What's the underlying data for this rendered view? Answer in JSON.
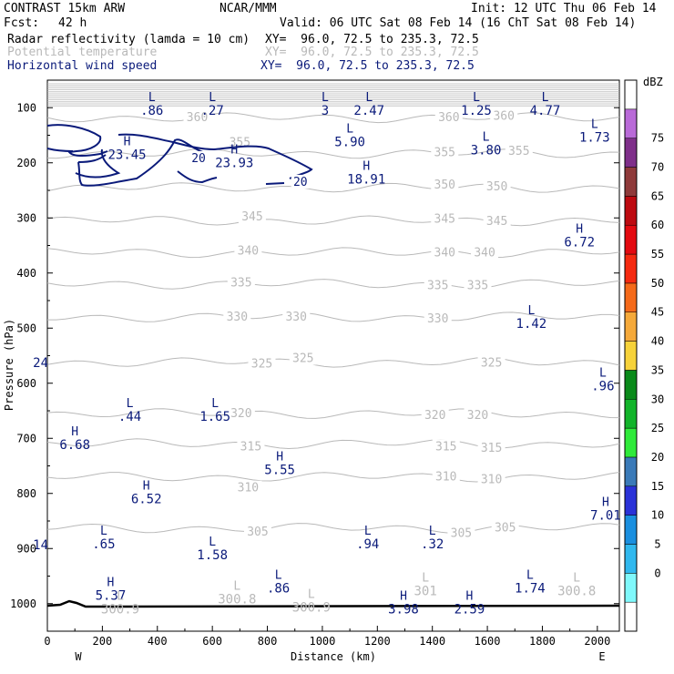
{
  "header": {
    "model_title": "CONTRAST 15km ARW",
    "center": "NCAR/MMM",
    "init": "Init: 12 UTC Thu 06 Feb 14",
    "fcst_label": "Fcst:",
    "fcst_value": "42 h",
    "valid": "Valid: 06 UTC Sat 08 Feb 14 (16 ChT Sat 08 Feb 14)",
    "fields": [
      {
        "name": "Radar reflectivity (lamda = 10 cm)",
        "xy": "XY=  96.0, 72.5 to 235.3, 72.5",
        "color": "#000000"
      },
      {
        "name": "Potential temperature",
        "xy": "XY=  96.0, 72.5 to 235.3, 72.5",
        "color": "#b9b9b9"
      },
      {
        "name": "Horizontal wind speed",
        "xy": "XY=  96.0, 72.5 to 235.3, 72.5",
        "color": "#0a1a7a"
      }
    ]
  },
  "chart_data": {
    "type": "contour-cross-section",
    "ylabel": "Pressure (hPa)",
    "xlabel": "Distance (km)",
    "xlim": [
      0,
      2080
    ],
    "ylim": [
      1050,
      50
    ],
    "x_ticks": [
      "0",
      "200",
      "400",
      "600",
      "800",
      "1000",
      "1200",
      "1400",
      "1600",
      "1800",
      "2000"
    ],
    "y_ticks": [
      "100",
      "200",
      "300",
      "400",
      "500",
      "600",
      "700",
      "800",
      "900",
      "1000"
    ],
    "x_end_labels": {
      "left": "W",
      "right": "E"
    },
    "colorbar": {
      "unit": "dBZ",
      "levels": [
        "0",
        "5",
        "10",
        "15",
        "20",
        "25",
        "30",
        "35",
        "40",
        "45",
        "50",
        "55",
        "60",
        "65",
        "70",
        "75"
      ],
      "colors": [
        "#ffffff",
        "#7ff8fb",
        "#30b8ee",
        "#1a8fdf",
        "#2a32d8",
        "#3a7ab8",
        "#2fea3a",
        "#12b42a",
        "#0a8a1a",
        "#f6d23a",
        "#f5a93a",
        "#f56a1a",
        "#f52a10",
        "#e30a10",
        "#bd0a10",
        "#8f3a3a",
        "#7f2f8a",
        "#b96ad8",
        "#ffffff"
      ]
    },
    "potential_temperature_levels": [
      {
        "value": "360",
        "p": 118
      },
      {
        "value": "355",
        "p": 183
      },
      {
        "value": "350",
        "p": 245
      },
      {
        "value": "345",
        "p": 305
      },
      {
        "value": "340",
        "p": 363
      },
      {
        "value": "335",
        "p": 420
      },
      {
        "value": "330",
        "p": 480
      },
      {
        "value": "325",
        "p": 562
      },
      {
        "value": "320",
        "p": 655
      },
      {
        "value": "315",
        "p": 710
      },
      {
        "value": "310",
        "p": 770
      },
      {
        "value": "305",
        "p": 863
      }
    ],
    "wind_speed_contours": [
      {
        "value": "20",
        "label_x": 550,
        "label_p": 192
      },
      {
        "value": "20",
        "label_x": 920,
        "label_p": 235
      }
    ],
    "theta_labels": [
      {
        "text": "360",
        "x": 545,
        "p": 118
      },
      {
        "text": "360",
        "x": 1460,
        "p": 118
      },
      {
        "text": "360",
        "x": 1660,
        "p": 115
      },
      {
        "text": "355",
        "x": 700,
        "p": 163
      },
      {
        "text": "355",
        "x": 1445,
        "p": 181
      },
      {
        "text": "355",
        "x": 1715,
        "p": 179
      },
      {
        "text": "350",
        "x": 1445,
        "p": 240
      },
      {
        "text": "350",
        "x": 1635,
        "p": 243
      },
      {
        "text": "345",
        "x": 745,
        "p": 298
      },
      {
        "text": "345",
        "x": 1445,
        "p": 302
      },
      {
        "text": "345",
        "x": 1635,
        "p": 306
      },
      {
        "text": "340",
        "x": 730,
        "p": 360
      },
      {
        "text": "340",
        "x": 1445,
        "p": 363
      },
      {
        "text": "340",
        "x": 1590,
        "p": 363
      },
      {
        "text": "335",
        "x": 705,
        "p": 418
      },
      {
        "text": "335",
        "x": 1420,
        "p": 423
      },
      {
        "text": "335",
        "x": 1565,
        "p": 423
      },
      {
        "text": "330",
        "x": 690,
        "p": 480
      },
      {
        "text": "330",
        "x": 905,
        "p": 480
      },
      {
        "text": "330",
        "x": 1420,
        "p": 483
      },
      {
        "text": "325",
        "x": 780,
        "p": 565
      },
      {
        "text": "325",
        "x": 930,
        "p": 555
      },
      {
        "text": "325",
        "x": 1615,
        "p": 563
      },
      {
        "text": "320",
        "x": 705,
        "p": 655
      },
      {
        "text": "320",
        "x": 1410,
        "p": 658
      },
      {
        "text": "320",
        "x": 1565,
        "p": 658
      },
      {
        "text": "315",
        "x": 740,
        "p": 715
      },
      {
        "text": "315",
        "x": 1450,
        "p": 715
      },
      {
        "text": "315",
        "x": 1615,
        "p": 718
      },
      {
        "text": "310",
        "x": 730,
        "p": 790
      },
      {
        "text": "310",
        "x": 1450,
        "p": 770
      },
      {
        "text": "310",
        "x": 1615,
        "p": 775
      },
      {
        "text": "305",
        "x": 765,
        "p": 870
      },
      {
        "text": "305",
        "x": 1505,
        "p": 872
      },
      {
        "text": "305",
        "x": 1665,
        "p": 862
      }
    ],
    "markers": [
      {
        "sym": "L",
        "val": ".86",
        "x": 380,
        "p": 88,
        "color": "#0a1a7a"
      },
      {
        "sym": "L",
        "val": ".27",
        "x": 600,
        "p": 88,
        "color": "#0a1a7a"
      },
      {
        "sym": "L",
        "val": "3",
        "x": 1010,
        "p": 88,
        "color": "#0a1a7a"
      },
      {
        "sym": "L",
        "val": "2.47",
        "x": 1170,
        "p": 88,
        "color": "#0a1a7a"
      },
      {
        "sym": "L",
        "val": "1.25",
        "x": 1560,
        "p": 88,
        "color": "#0a1a7a"
      },
      {
        "sym": "L",
        "val": "4.77",
        "x": 1810,
        "p": 88,
        "color": "#0a1a7a"
      },
      {
        "sym": "L",
        "val": "1.73",
        "x": 1990,
        "p": 137,
        "color": "#0a1a7a"
      },
      {
        "sym": "H",
        "val": "23.45",
        "x": 290,
        "p": 168,
        "color": "#0a1a7a"
      },
      {
        "sym": "H",
        "val": "23.93",
        "x": 680,
        "p": 183,
        "color": "#0a1a7a"
      },
      {
        "sym": "L",
        "val": "5.90",
        "x": 1100,
        "p": 145,
        "color": "#0a1a7a"
      },
      {
        "sym": "L",
        "val": "3.80",
        "x": 1595,
        "p": 160,
        "color": "#0a1a7a"
      },
      {
        "sym": "H",
        "val": "18.91",
        "x": 1160,
        "p": 213,
        "color": "#0a1a7a"
      },
      {
        "sym": "H",
        "val": "6.72",
        "x": 1935,
        "p": 327,
        "color": "#0a1a7a"
      },
      {
        "sym": "L",
        "val": "1.42",
        "x": 1760,
        "p": 475,
        "color": "#0a1a7a"
      },
      {
        "sym": "L",
        "val": ".96",
        "x": 2020,
        "p": 588,
        "color": "#0a1a7a"
      },
      {
        "sym": "L",
        "val": ".44",
        "x": 300,
        "p": 643,
        "color": "#0a1a7a"
      },
      {
        "sym": "L",
        "val": "1.65",
        "x": 610,
        "p": 643,
        "color": "#0a1a7a"
      },
      {
        "sym": "H",
        "val": "6.68",
        "x": 100,
        "p": 695,
        "color": "#0a1a7a"
      },
      {
        "sym": "H",
        "val": "5.55",
        "x": 845,
        "p": 740,
        "color": "#0a1a7a"
      },
      {
        "sym": "H",
        "val": "6.52",
        "x": 360,
        "p": 793,
        "color": "#0a1a7a"
      },
      {
        "sym": "H",
        "val": "7.01",
        "x": 2030,
        "p": 823,
        "color": "#0a1a7a"
      },
      {
        "sym": "L",
        "val": ".65",
        "x": 205,
        "p": 875,
        "color": "#0a1a7a"
      },
      {
        "sym": "L",
        "val": "1.58",
        "x": 600,
        "p": 895,
        "color": "#0a1a7a"
      },
      {
        "sym": "L",
        "val": ".94",
        "x": 1165,
        "p": 875,
        "color": "#0a1a7a"
      },
      {
        "sym": "L",
        "val": ".32",
        "x": 1400,
        "p": 875,
        "color": "#0a1a7a"
      },
      {
        "sym": "L",
        "val": "1.74",
        "x": 1755,
        "p": 955,
        "color": "#0a1a7a"
      },
      {
        "sym": "L",
        "val": ".86",
        "x": 840,
        "p": 955,
        "color": "#0a1a7a"
      },
      {
        "sym": "H",
        "val": "5.37",
        "x": 230,
        "p": 968,
        "color": "#0a1a7a"
      },
      {
        "sym": "H",
        "val": "3.98",
        "x": 1295,
        "p": 993,
        "color": "#0a1a7a"
      },
      {
        "sym": "H",
        "val": "2.59",
        "x": 1535,
        "p": 993,
        "color": "#0a1a7a"
      },
      {
        "sym": "L",
        "val": "300.8",
        "x": 690,
        "p": 975,
        "color": "#b9b9b9"
      },
      {
        "sym": "L",
        "val": "300.9",
        "x": 960,
        "p": 990,
        "color": "#b9b9b9"
      },
      {
        "sym": "L",
        "val": "301",
        "x": 1375,
        "p": 960,
        "color": "#b9b9b9"
      },
      {
        "sym": "L",
        "val": "300.8",
        "x": 1925,
        "p": 960,
        "color": "#b9b9b9"
      },
      {
        "sym": "L",
        "val": "300.9",
        "x": 265,
        "p": 993,
        "color": "#b9b9b9"
      }
    ],
    "edge_labels": [
      {
        "text": "24",
        "side": "left",
        "p": 562,
        "color": "#0a1a7a"
      },
      {
        "text": "14",
        "side": "left",
        "p": 893,
        "color": "#0a1a7a"
      }
    ]
  }
}
